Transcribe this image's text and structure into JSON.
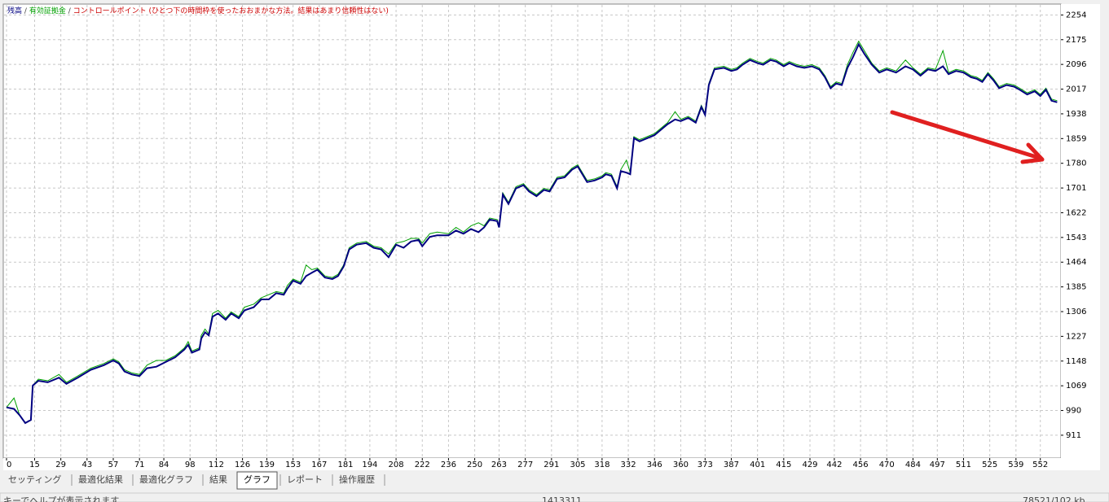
{
  "chart_data": {
    "type": "line",
    "legend_separator": "/",
    "annotation": "コントロールポイント (ひとつ下の時間枠を使ったおおまかな方法。結果はあまり信頼性はない)",
    "x": [
      0,
      4,
      7,
      10,
      13,
      14,
      17,
      22,
      28,
      32,
      38,
      45,
      52,
      57,
      60,
      63,
      67,
      71,
      75,
      80,
      85,
      90,
      95,
      97,
      99,
      103,
      104,
      106,
      108,
      110,
      113,
      117,
      120,
      124,
      127,
      132,
      136,
      140,
      144,
      148,
      150,
      153,
      157,
      160,
      163,
      166,
      170,
      174,
      177,
      180,
      183,
      187,
      192,
      196,
      200,
      204,
      208,
      212,
      216,
      220,
      222,
      226,
      230,
      236,
      240,
      244,
      248,
      252,
      255,
      258,
      262,
      263,
      265,
      268,
      272,
      276,
      279,
      283,
      287,
      290,
      294,
      298,
      302,
      305,
      307,
      310,
      314,
      318,
      320,
      323,
      326,
      328,
      331,
      333,
      335,
      338,
      342,
      346,
      350,
      353,
      357,
      360,
      364,
      368,
      371,
      373,
      375,
      378,
      383,
      387,
      390,
      393,
      397,
      401,
      404,
      408,
      411,
      415,
      418,
      422,
      426,
      430,
      434,
      437,
      440,
      443,
      446,
      449,
      452,
      455,
      458,
      462,
      466,
      470,
      475,
      480,
      484,
      488,
      492,
      496,
      500,
      503,
      507,
      511,
      515,
      518,
      521,
      524,
      527,
      530,
      534,
      538,
      541,
      545,
      549,
      552,
      555,
      558,
      561
    ],
    "series": [
      {
        "name": "有効証拠金",
        "color": "#00a000",
        "values": [
          1000,
          1030,
          975,
          950,
          960,
          1070,
          1090,
          1085,
          1105,
          1080,
          1100,
          1125,
          1140,
          1155,
          1145,
          1120,
          1110,
          1105,
          1135,
          1150,
          1150,
          1165,
          1190,
          1210,
          1180,
          1190,
          1230,
          1250,
          1235,
          1300,
          1310,
          1285,
          1305,
          1290,
          1320,
          1330,
          1350,
          1360,
          1370,
          1365,
          1390,
          1410,
          1400,
          1455,
          1440,
          1445,
          1420,
          1415,
          1425,
          1455,
          1510,
          1525,
          1530,
          1515,
          1510,
          1490,
          1525,
          1530,
          1540,
          1540,
          1525,
          1555,
          1560,
          1555,
          1575,
          1560,
          1580,
          1590,
          1580,
          1605,
          1600,
          1580,
          1685,
          1655,
          1705,
          1715,
          1695,
          1680,
          1700,
          1695,
          1735,
          1740,
          1765,
          1775,
          1755,
          1725,
          1730,
          1740,
          1750,
          1745,
          1705,
          1760,
          1790,
          1750,
          1865,
          1855,
          1865,
          1875,
          1895,
          1910,
          1945,
          1920,
          1930,
          1915,
          1965,
          1940,
          2035,
          2085,
          2090,
          2080,
          2085,
          2100,
          2115,
          2105,
          2100,
          2115,
          2110,
          2095,
          2105,
          2095,
          2090,
          2095,
          2085,
          2060,
          2025,
          2040,
          2035,
          2095,
          2135,
          2170,
          2140,
          2100,
          2075,
          2085,
          2075,
          2110,
          2085,
          2065,
          2085,
          2080,
          2140,
          2070,
          2080,
          2075,
          2060,
          2055,
          2045,
          2070,
          2050,
          2025,
          2035,
          2030,
          2020,
          2005,
          2015,
          2000,
          2020,
          1985,
          1980
        ]
      },
      {
        "name": "残高",
        "color": "#000080",
        "values": [
          1000,
          995,
          975,
          950,
          960,
          1070,
          1085,
          1080,
          1095,
          1075,
          1095,
          1120,
          1135,
          1150,
          1140,
          1115,
          1105,
          1100,
          1125,
          1130,
          1145,
          1160,
          1185,
          1200,
          1175,
          1185,
          1220,
          1240,
          1230,
          1290,
          1300,
          1280,
          1300,
          1285,
          1310,
          1320,
          1345,
          1345,
          1365,
          1360,
          1380,
          1405,
          1395,
          1420,
          1430,
          1440,
          1415,
          1410,
          1420,
          1450,
          1505,
          1520,
          1525,
          1510,
          1505,
          1480,
          1520,
          1510,
          1530,
          1535,
          1515,
          1545,
          1550,
          1550,
          1565,
          1555,
          1570,
          1560,
          1575,
          1600,
          1595,
          1575,
          1680,
          1650,
          1700,
          1710,
          1690,
          1675,
          1695,
          1690,
          1730,
          1735,
          1760,
          1770,
          1750,
          1720,
          1725,
          1735,
          1745,
          1740,
          1700,
          1755,
          1750,
          1745,
          1860,
          1850,
          1860,
          1870,
          1890,
          1905,
          1920,
          1915,
          1925,
          1910,
          1960,
          1935,
          2030,
          2080,
          2085,
          2075,
          2080,
          2095,
          2110,
          2100,
          2095,
          2110,
          2105,
          2090,
          2100,
          2090,
          2085,
          2090,
          2080,
          2055,
          2020,
          2035,
          2030,
          2085,
          2120,
          2160,
          2130,
          2095,
          2070,
          2080,
          2070,
          2090,
          2080,
          2060,
          2080,
          2075,
          2090,
          2065,
          2075,
          2070,
          2055,
          2050,
          2040,
          2065,
          2045,
          2020,
          2030,
          2025,
          2015,
          2000,
          2010,
          1995,
          2015,
          1980,
          1975
        ]
      }
    ],
    "annotation_color": "#cc0000",
    "xlim": [
      0,
      563
    ],
    "ylim": [
      838,
      2281
    ],
    "xticks": [
      0,
      15,
      29,
      43,
      57,
      71,
      84,
      98,
      112,
      126,
      139,
      153,
      167,
      181,
      194,
      208,
      222,
      236,
      250,
      263,
      277,
      291,
      305,
      318,
      332,
      346,
      360,
      373,
      387,
      401,
      415,
      429,
      442,
      456,
      470,
      484,
      497,
      511,
      525,
      539,
      552
    ],
    "yticks": [
      911,
      990,
      1069,
      1148,
      1227,
      1306,
      1385,
      1464,
      1543,
      1622,
      1701,
      1780,
      1859,
      1938,
      2017,
      2096,
      2175,
      2254
    ],
    "grid": true
  },
  "tabs": [
    "セッティング",
    "最適化結果",
    "最適化グラフ",
    "結果",
    "グラフ",
    "レポート",
    "操作履歴"
  ],
  "active_tab": 4,
  "status": [
    "キーでヘルプが表示されます",
    "1413311",
    "78521/102 kb"
  ]
}
